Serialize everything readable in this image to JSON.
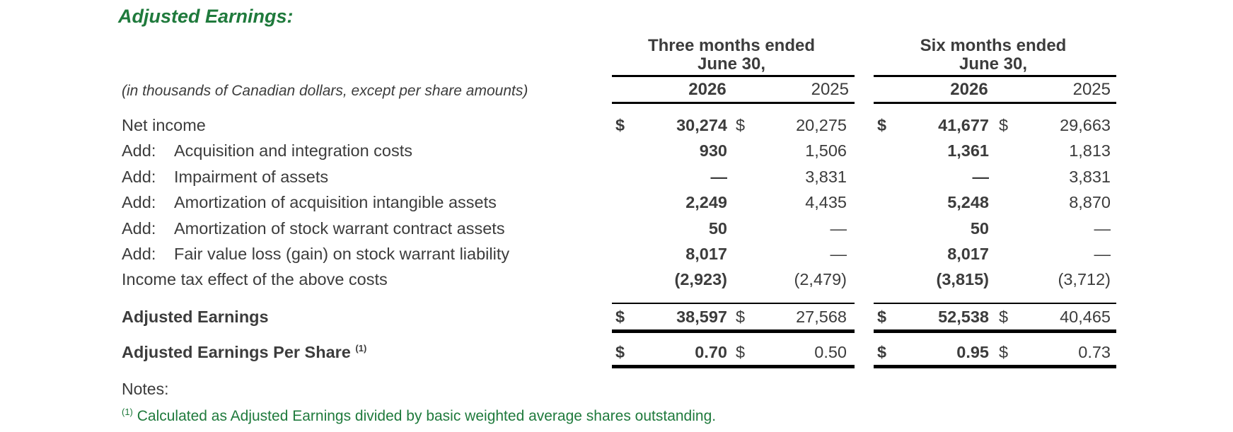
{
  "title": "Adjusted Earnings:",
  "subtitle": "(in thousands of Canadian dollars, except per share amounts)",
  "period_headers": [
    {
      "line1": "Three months ended",
      "line2": "June 30,",
      "year_current": "2026",
      "year_prior": "2025"
    },
    {
      "line1": "Six months ended",
      "line2": "June 30,",
      "year_current": "2026",
      "year_prior": "2025"
    }
  ],
  "rows": [
    {
      "prefix": "",
      "label": "Net income",
      "dollar": "$",
      "q_cur": "30,274",
      "q_prior": "20,275",
      "y_cur": "41,677",
      "y_prior": "29,663"
    },
    {
      "prefix": "Add:",
      "label": "Acquisition and integration costs",
      "dollar": "",
      "q_cur": "930",
      "q_prior": "1,506",
      "y_cur": "1,361",
      "y_prior": "1,813"
    },
    {
      "prefix": "Add:",
      "label": "Impairment of assets",
      "dollar": "",
      "q_cur": "—",
      "q_prior": "3,831",
      "y_cur": "—",
      "y_prior": "3,831"
    },
    {
      "prefix": "Add:",
      "label": "Amortization of acquisition intangible assets",
      "dollar": "",
      "q_cur": "2,249",
      "q_prior": "4,435",
      "y_cur": "5,248",
      "y_prior": "8,870"
    },
    {
      "prefix": "Add:",
      "label": "Amortization of stock warrant contract assets",
      "dollar": "",
      "q_cur": "50",
      "q_prior": "—",
      "y_cur": "50",
      "y_prior": "—"
    },
    {
      "prefix": "Add:",
      "label": "Fair value loss (gain) on stock warrant liability",
      "dollar": "",
      "q_cur": "8,017",
      "q_prior": "—",
      "y_cur": "8,017",
      "y_prior": "—"
    },
    {
      "prefix": "",
      "label": "Income tax effect of the above costs",
      "dollar": "",
      "q_cur": "(2,923)",
      "q_prior": "(2,479)",
      "y_cur": "(3,815)",
      "y_prior": "(3,712)"
    }
  ],
  "totals": [
    {
      "label": "Adjusted Earnings",
      "sup": "",
      "dollar": "$",
      "q_cur": "38,597",
      "q_prior": "27,568",
      "y_cur": "52,538",
      "y_prior": "40,465"
    },
    {
      "label": "Adjusted Earnings Per Share",
      "sup": "(1)",
      "dollar": "$",
      "q_cur": "0.70",
      "q_prior": "0.50",
      "y_cur": "0.95",
      "y_prior": "0.73"
    }
  ],
  "notes_label": "Notes:",
  "footnote": {
    "marker": "(1)",
    "text": "Calculated as Adjusted Earnings divided by basic weighted average shares outstanding."
  },
  "colors": {
    "title": "#1f7a3c",
    "text": "#3c3c3c",
    "rule": "#000000"
  }
}
